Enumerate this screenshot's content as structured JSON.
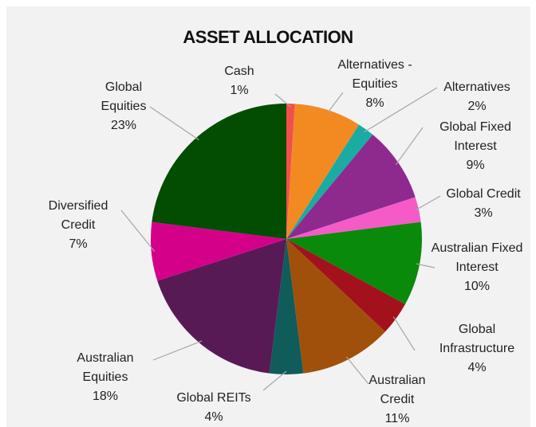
{
  "chart_data": {
    "type": "pie",
    "title": "ASSET ALLOCATION",
    "categories": [
      "Cash",
      "Alternatives - Equities",
      "Alternatives",
      "Global Fixed Interest",
      "Global Credit",
      "Australian Fixed Interest",
      "Global Infrastructure",
      "Australian Credit",
      "Global REITs",
      "Australian Equities",
      "Diversified Credit",
      "Global Equities"
    ],
    "values": [
      1,
      8,
      2,
      9,
      3,
      10,
      4,
      11,
      4,
      18,
      7,
      23
    ],
    "value_labels": [
      "1%",
      "8%",
      "2%",
      "9%",
      "3%",
      "10%",
      "4%",
      "11%",
      "4%",
      "18%",
      "7%",
      "23%"
    ],
    "colors": [
      "#f0504a",
      "#f28a21",
      "#1aaba3",
      "#8e2a8e",
      "#f55bc6",
      "#0a8a0a",
      "#a3121c",
      "#a0500a",
      "#0f5c5a",
      "#581a55",
      "#d4008a",
      "#024d02"
    ]
  }
}
